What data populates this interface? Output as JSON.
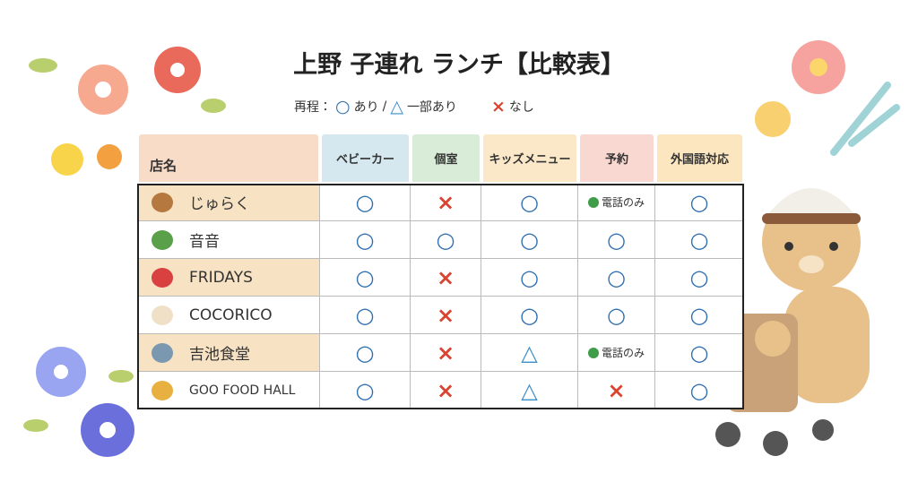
{
  "header": {
    "title": "上野 子連れ ランチ【比較表】"
  },
  "legend": {
    "label": "再程：",
    "items": [
      {
        "symbol": "○",
        "text": "あり",
        "color": "#2f6fb0"
      },
      {
        "symbol": "△",
        "text": "一部あり",
        "color": "#3a8fc8"
      },
      {
        "symbol": "×",
        "text": "なし",
        "color": "#d9432f"
      }
    ],
    "separator": "/"
  },
  "table": {
    "columns": [
      "店名",
      "ベビーカー",
      "個室",
      "キッズメニュー",
      "予約",
      "外国語対応"
    ],
    "rows": [
      [
        "じゅらく",
        "○",
        "×",
        "○",
        "電話のみ",
        "○"
      ],
      [
        "音音",
        "○",
        "○",
        "○",
        "○",
        "○"
      ],
      [
        "FRIDAYS",
        "○",
        "×",
        "○",
        "○",
        "○"
      ],
      [
        "COCORICO",
        "○",
        "×",
        "○",
        "○",
        "○"
      ],
      [
        "吉池食堂",
        "○",
        "×",
        "△",
        "電話のみ",
        "○"
      ],
      [
        "GOO FOOD HALL",
        "○",
        "×",
        "△",
        "×",
        "○"
      ]
    ]
  }
}
